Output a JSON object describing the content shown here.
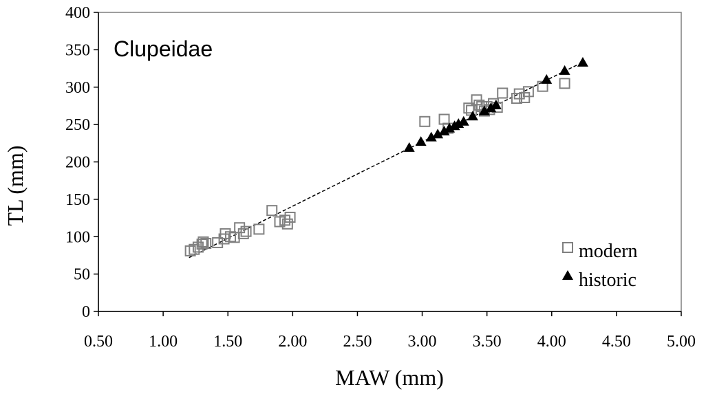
{
  "chart_data": {
    "type": "scatter",
    "title": "Clupeidae",
    "xlabel": "MAW (mm)",
    "ylabel": "TL (mm)",
    "xlim": [
      0.5,
      5.0
    ],
    "ylim": [
      0,
      400
    ],
    "x_ticks": [
      "0.50",
      "1.00",
      "1.50",
      "2.00",
      "2.50",
      "3.00",
      "3.50",
      "4.00",
      "4.50",
      "5.00"
    ],
    "y_ticks": [
      "0",
      "50",
      "100",
      "150",
      "200",
      "250",
      "300",
      "350",
      "400"
    ],
    "grid": false,
    "legend_position": "bottom-right",
    "series": [
      {
        "name": "modern",
        "marker": "open-square",
        "color": "#808080",
        "points": [
          [
            1.21,
            81
          ],
          [
            1.24,
            83
          ],
          [
            1.27,
            86
          ],
          [
            1.3,
            90
          ],
          [
            1.31,
            93
          ],
          [
            1.33,
            91
          ],
          [
            1.42,
            92
          ],
          [
            1.47,
            97
          ],
          [
            1.48,
            104
          ],
          [
            1.52,
            100
          ],
          [
            1.55,
            99
          ],
          [
            1.59,
            112
          ],
          [
            1.62,
            104
          ],
          [
            1.64,
            107
          ],
          [
            1.74,
            110
          ],
          [
            1.84,
            135
          ],
          [
            1.9,
            120
          ],
          [
            1.94,
            122
          ],
          [
            1.96,
            117
          ],
          [
            1.98,
            126
          ],
          [
            3.02,
            254
          ],
          [
            3.17,
            257
          ],
          [
            3.2,
            245
          ],
          [
            3.36,
            272
          ],
          [
            3.38,
            269
          ],
          [
            3.42,
            283
          ],
          [
            3.44,
            276
          ],
          [
            3.46,
            274
          ],
          [
            3.48,
            268
          ],
          [
            3.5,
            274
          ],
          [
            3.52,
            270
          ],
          [
            3.55,
            278
          ],
          [
            3.58,
            273
          ],
          [
            3.62,
            292
          ],
          [
            3.73,
            285
          ],
          [
            3.75,
            291
          ],
          [
            3.79,
            286
          ],
          [
            3.82,
            294
          ],
          [
            3.93,
            301
          ],
          [
            4.1,
            305
          ]
        ]
      },
      {
        "name": "historic",
        "marker": "filled-triangle",
        "color": "#000000",
        "points": [
          [
            2.9,
            219
          ],
          [
            2.99,
            227
          ],
          [
            3.07,
            233
          ],
          [
            3.12,
            237
          ],
          [
            3.17,
            241
          ],
          [
            3.21,
            245
          ],
          [
            3.25,
            248
          ],
          [
            3.28,
            251
          ],
          [
            3.32,
            254
          ],
          [
            3.39,
            261
          ],
          [
            3.48,
            268
          ],
          [
            3.53,
            272
          ],
          [
            3.57,
            276
          ],
          [
            3.96,
            310
          ],
          [
            4.1,
            322
          ],
          [
            4.24,
            333
          ]
        ]
      }
    ],
    "trendline": {
      "style": "dashed",
      "color": "#000000",
      "x": [
        1.2,
        4.2
      ],
      "y": [
        72,
        330
      ]
    }
  }
}
